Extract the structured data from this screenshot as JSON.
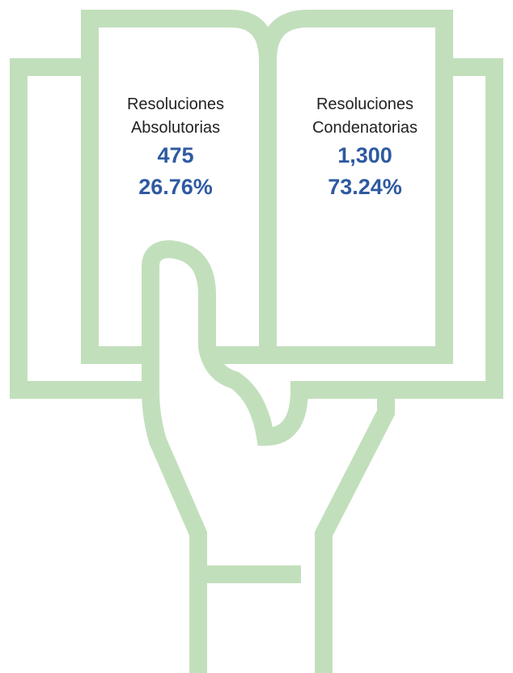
{
  "panels": [
    {
      "label": [
        "Resoluciones",
        "Absolutorias"
      ],
      "count": "475",
      "percent": "26.76%"
    },
    {
      "label": [
        "Resoluciones",
        "Condenatorias"
      ],
      "count": "1,300",
      "percent": "73.24%"
    }
  ]
}
